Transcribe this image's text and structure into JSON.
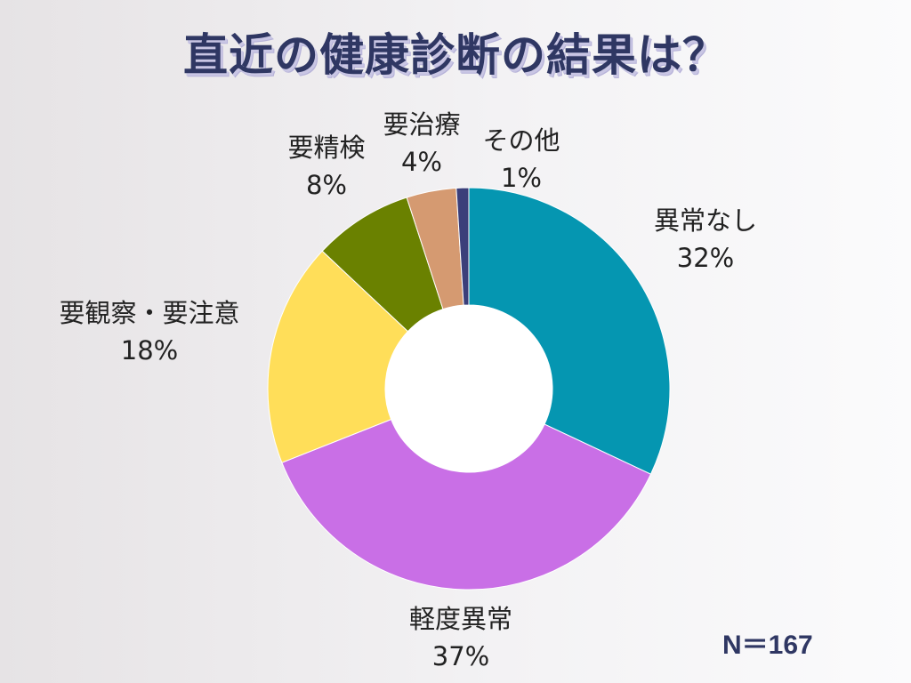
{
  "title": "直近の健康診断の結果は？",
  "sample_size": "N＝167",
  "chart_data": {
    "type": "pie",
    "donut": true,
    "title": "直近の健康診断の結果は？",
    "categories": [
      "異常なし",
      "軽度異常",
      "要観察・要注意",
      "要精検",
      "要治療",
      "その他"
    ],
    "values": [
      32,
      37,
      18,
      8,
      4,
      1
    ],
    "value_labels": [
      "32%",
      "37%",
      "18%",
      "8%",
      "4%",
      "1%"
    ],
    "colors": [
      "#0596b1",
      "#c96fe6",
      "#ffde59",
      "#6a8100",
      "#d59a71",
      "#3b3f7a"
    ],
    "unit": "%",
    "start": "12 o'clock",
    "direction": "clockwise",
    "legend": "none"
  }
}
